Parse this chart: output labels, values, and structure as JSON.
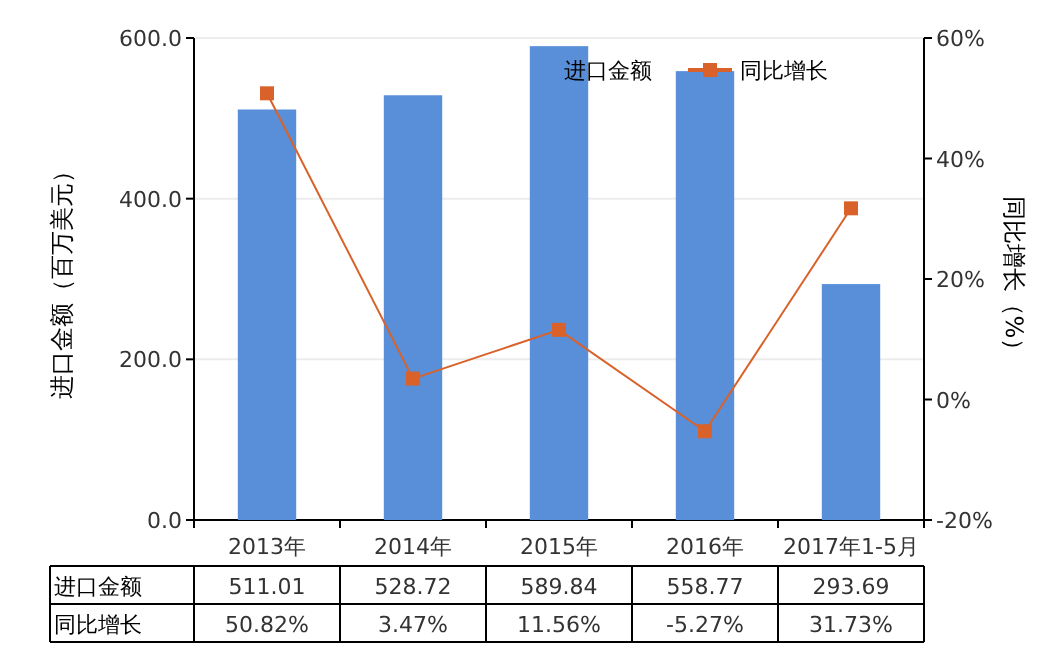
{
  "chart_data": {
    "type": "bar",
    "categories": [
      "2013年",
      "2014年",
      "2015年",
      "2016年",
      "2017年1-5月"
    ],
    "ylabel": "进口金额（百万美元）",
    "y2label": "同比增长（%）",
    "series": [
      {
        "name": "进口金额",
        "color": "#588fd8",
        "values": [
          511.01,
          528.72,
          589.84,
          558.77,
          293.69
        ],
        "value_labels": [
          "511.01",
          "528.72",
          "589.84",
          "558.77",
          "293.69"
        ]
      },
      {
        "name": "同比增长",
        "type": "line",
        "axis": "y2",
        "color": "#d9622b",
        "values": [
          50.82,
          3.47,
          11.56,
          -5.27,
          31.73
        ],
        "value_labels": [
          "50.82%",
          "3.47%",
          "11.56%",
          "-5.27%",
          "31.73%"
        ]
      }
    ],
    "ylim": [
      0,
      600
    ],
    "yticks": [
      {
        "value": 0,
        "label": "0.0"
      },
      {
        "value": 200,
        "label": "200.0"
      },
      {
        "value": 400,
        "label": "400.0"
      },
      {
        "value": 600,
        "label": "600.0"
      }
    ],
    "y2lim": [
      -20,
      60
    ],
    "y2ticks": [
      {
        "value": -20,
        "label": "-20%"
      },
      {
        "value": 0,
        "label": "0%"
      },
      {
        "value": 20,
        "label": "20%"
      },
      {
        "value": 40,
        "label": "40%"
      },
      {
        "value": 60,
        "label": "60%"
      }
    ],
    "grid": "y",
    "legend": "top right",
    "marker": "square"
  }
}
